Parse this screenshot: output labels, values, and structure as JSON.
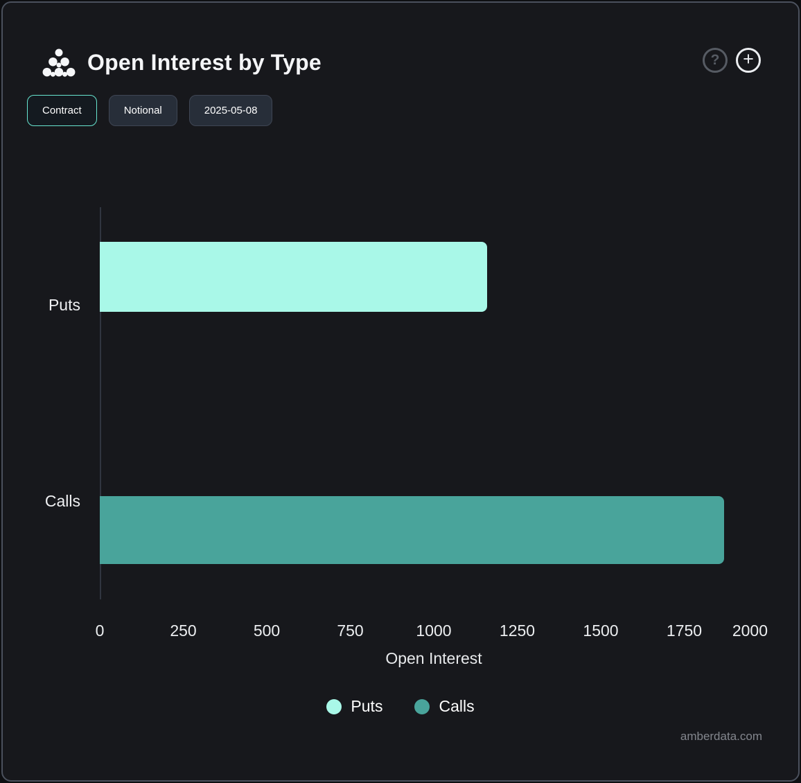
{
  "header": {
    "title": "Open Interest by Type",
    "help_label": "?",
    "add_label": "+"
  },
  "toolbar": {
    "buttons": [
      {
        "label": "Contract",
        "active": true
      },
      {
        "label": "Notional",
        "active": false
      },
      {
        "label": "2025-05-08",
        "active": false
      }
    ]
  },
  "chart_data": {
    "type": "bar",
    "orientation": "horizontal",
    "title": "Open Interest by Type",
    "categories": [
      "Puts",
      "Calls"
    ],
    "series": [
      {
        "name": "Puts",
        "value": 1160,
        "color": "#a9f8e8"
      },
      {
        "name": "Calls",
        "value": 1870,
        "color": "#49a49b"
      }
    ],
    "xlabel": "Open Interest",
    "xlim": [
      0,
      2000
    ],
    "xticks": [
      0,
      250,
      500,
      750,
      1000,
      1250,
      1500,
      1750,
      2000
    ],
    "legend": [
      "Puts",
      "Calls"
    ],
    "legend_position": "bottom",
    "grid": false,
    "background": "#17181c"
  },
  "footer": {
    "watermark": "amberdata.com"
  }
}
